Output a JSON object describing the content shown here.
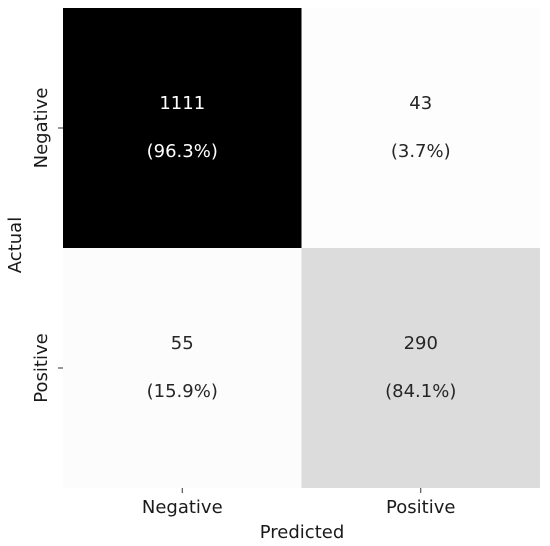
{
  "chart_data": {
    "type": "heatmap",
    "x_label": "Predicted",
    "y_label": "Actual",
    "x_categories": [
      "Negative",
      "Positive"
    ],
    "y_categories": [
      "Negative",
      "Positive"
    ],
    "values": [
      [
        1111,
        43
      ],
      [
        55,
        290
      ]
    ],
    "percent_labels": [
      [
        "(96.3%)",
        "(3.7%)"
      ],
      [
        "(15.9%)",
        "(84.1%)"
      ]
    ],
    "colors": [
      [
        "#000000",
        "#fdfdfd"
      ],
      [
        "#fcfcfc",
        "#dcdcdc"
      ]
    ],
    "text_colors": [
      [
        "#ffffff",
        "#262626"
      ],
      [
        "#262626",
        "#262626"
      ]
    ]
  }
}
